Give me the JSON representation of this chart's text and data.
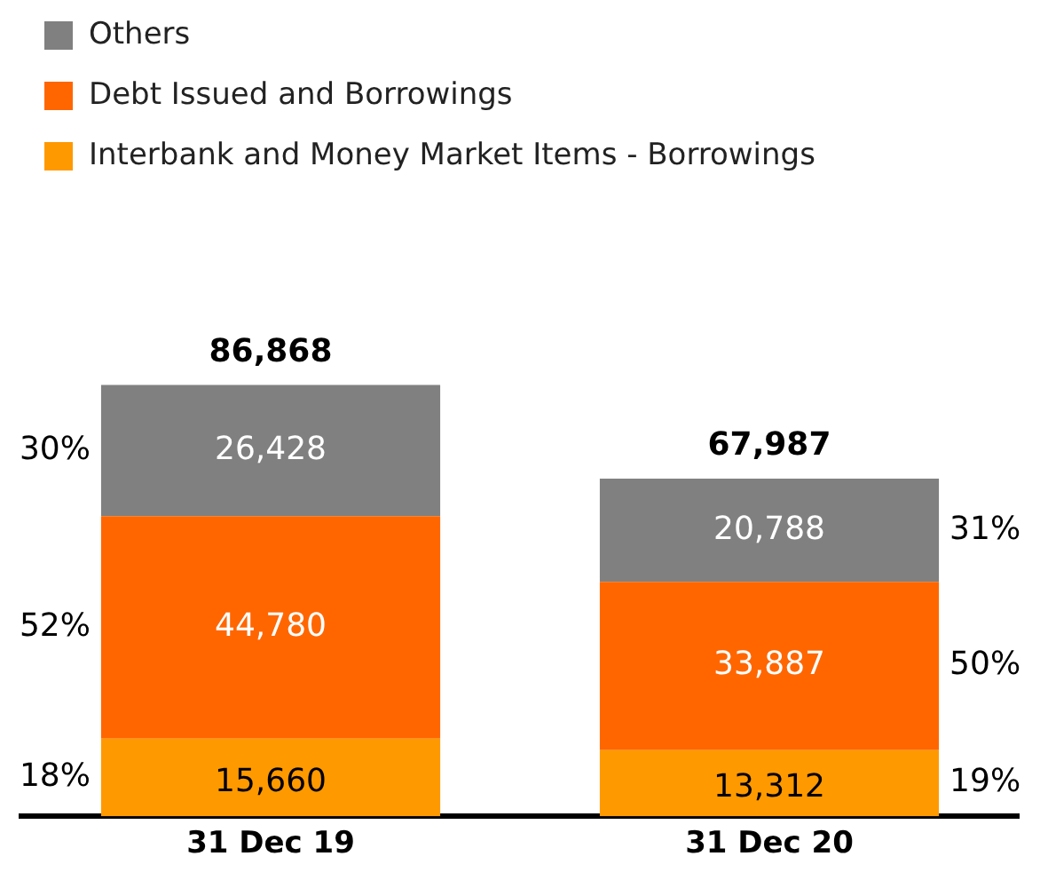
{
  "chart_data": {
    "type": "bar",
    "stacked": true,
    "legend": "top left",
    "categories": [
      "31 Dec 19",
      "31 Dec 20"
    ],
    "series": [
      {
        "name": "Interbank and Money Market Items - Borrowings",
        "color": "#ff9900",
        "values": [
          15660,
          13312
        ],
        "value_labels": [
          "15,660",
          "13,312"
        ]
      },
      {
        "name": "Debt Issued and Borrowings",
        "color": "#ff6600",
        "values": [
          44780,
          33887
        ],
        "value_labels": [
          "44,780",
          "33,887"
        ]
      },
      {
        "name": "Others",
        "color": "#808080",
        "values": [
          26428,
          20788
        ],
        "value_labels": [
          "26,428",
          "20,788"
        ]
      }
    ],
    "totals": [
      "86,868",
      "67,987"
    ],
    "annotations": [
      "18%",
      "52%",
      "30%",
      "19%",
      "50%",
      "31%"
    ]
  }
}
